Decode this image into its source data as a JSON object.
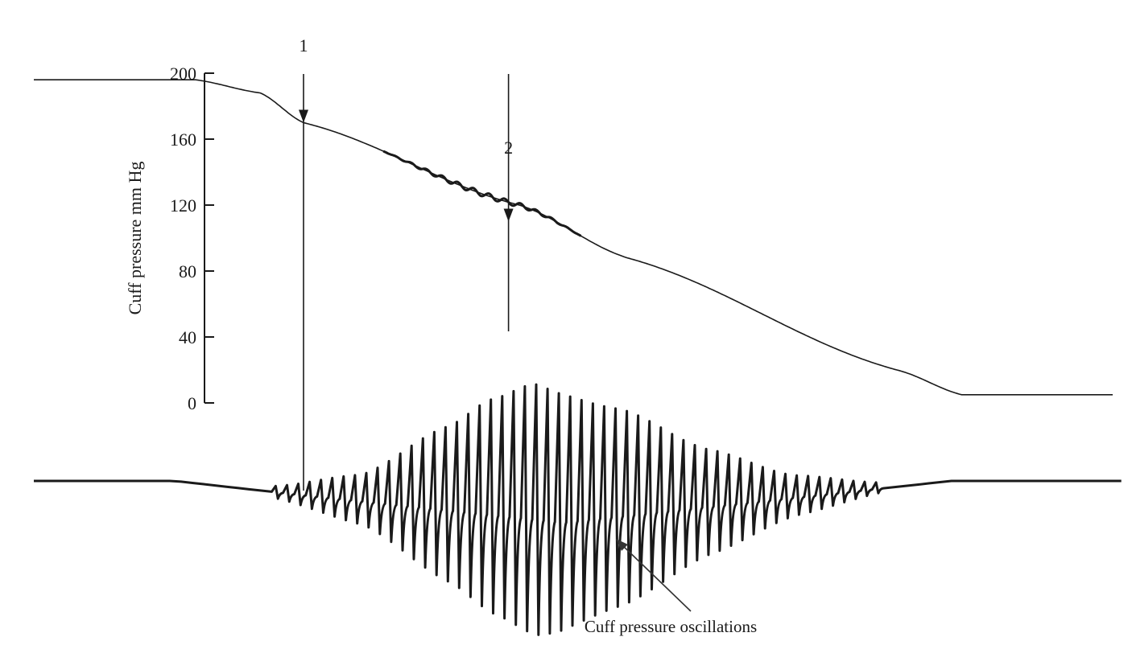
{
  "chart_data": {
    "type": "line",
    "ylabel": "Cuff pressure mm Hg",
    "y_ticks": [
      0,
      40,
      80,
      120,
      160,
      200
    ],
    "ylim": [
      0,
      200
    ],
    "grid": false,
    "series": [
      {
        "kind": "cuff_pressure",
        "x": [
          0,
          0.15,
          0.21,
          0.25,
          0.45,
          0.55,
          0.8,
          0.86,
          1.0
        ],
        "values": [
          196,
          196,
          188,
          170,
          120,
          88,
          20,
          5,
          5
        ]
      },
      {
        "kind": "oscillation_amplitude",
        "x": [
          0.22,
          0.3,
          0.38,
          0.42,
          0.46,
          0.54,
          0.62,
          0.7,
          0.78
        ],
        "values": [
          0.05,
          0.2,
          0.62,
          0.85,
          1.0,
          0.78,
          0.42,
          0.16,
          0.04
        ]
      }
    ],
    "markers": [
      {
        "label": "1",
        "x": 0.25,
        "y": 170
      },
      {
        "label": "2",
        "x": 0.44,
        "y": 110
      }
    ],
    "annotations": [
      {
        "text": "Cuff pressure oscillations"
      }
    ]
  }
}
